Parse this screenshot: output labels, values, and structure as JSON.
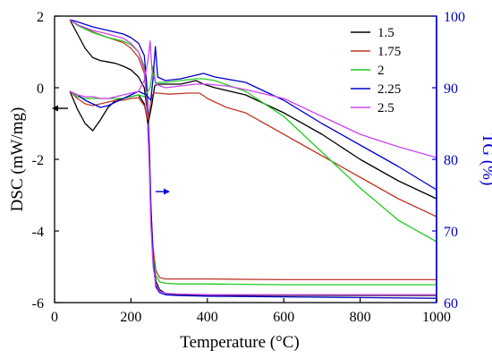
{
  "chart_data": {
    "type": "line",
    "xlabel": "Temperature (°C)",
    "ylabel": "DSC (mW/mg)",
    "y2label": "TG (%)",
    "xlim": [
      0,
      1000
    ],
    "ylim": [
      -6,
      2
    ],
    "y2lim": [
      60,
      100
    ],
    "xticks": [
      "0",
      "200",
      "400",
      "600",
      "800",
      "1000"
    ],
    "yticks": [
      "2",
      "0",
      "-2",
      "-4",
      "-6"
    ],
    "y2ticks": [
      "100",
      "90",
      "80",
      "70",
      "60"
    ],
    "legend_position": "top-right",
    "legend": [
      "1.5",
      "1.75",
      "2",
      "2.25",
      "2.5"
    ],
    "colors": {
      "1.5": "#000000",
      "1.75": "#c0392b",
      "2": "#22cc22",
      "2.25": "#0000cc",
      "2.5": "#cc44ee",
      "right_axis": "#0000cc",
      "left_arrow": "#000000"
    },
    "annotations": [
      {
        "type": "arrow",
        "direction": "left",
        "meaning": "DSC axis"
      },
      {
        "type": "arrow",
        "direction": "right",
        "meaning": "TG axis"
      }
    ],
    "dsc_series": [
      {
        "name": "1.5",
        "color": "#000000",
        "x": [
          40,
          60,
          80,
          100,
          120,
          140,
          160,
          180,
          200,
          220,
          235,
          245,
          255,
          262,
          270,
          290,
          330,
          370,
          390,
          420,
          500,
          600,
          700,
          800,
          900,
          1000
        ],
        "y": [
          -0.1,
          -0.6,
          -1.0,
          -1.2,
          -0.9,
          -0.55,
          -0.35,
          -0.3,
          -0.25,
          -0.2,
          -0.45,
          -1.0,
          -0.45,
          0.05,
          0.1,
          0.1,
          0.1,
          0.2,
          0.1,
          0.0,
          -0.2,
          -0.7,
          -1.3,
          -2.0,
          -2.6,
          -3.1
        ]
      },
      {
        "name": "1.75",
        "color": "#c0392b",
        "x": [
          40,
          60,
          80,
          100,
          120,
          140,
          160,
          180,
          200,
          220,
          235,
          245,
          255,
          262,
          270,
          300,
          350,
          380,
          400,
          450,
          500,
          600,
          700,
          800,
          900,
          1000
        ],
        "y": [
          -0.1,
          -0.3,
          -0.45,
          -0.5,
          -0.45,
          -0.4,
          -0.35,
          -0.35,
          -0.3,
          -0.28,
          -0.5,
          -0.9,
          -0.2,
          -0.15,
          -0.15,
          -0.18,
          -0.15,
          -0.15,
          -0.3,
          -0.55,
          -0.7,
          -1.3,
          -1.9,
          -2.5,
          -3.1,
          -3.6
        ]
      },
      {
        "name": "2",
        "color": "#22cc22",
        "x": [
          40,
          60,
          80,
          100,
          120,
          140,
          160,
          180,
          200,
          220,
          235,
          250,
          258,
          265,
          270,
          290,
          330,
          370,
          390,
          420,
          500,
          600,
          700,
          800,
          900,
          1000
        ],
        "y": [
          -0.1,
          -0.25,
          -0.3,
          -0.3,
          -0.3,
          -0.3,
          -0.3,
          -0.3,
          -0.25,
          -0.2,
          -0.25,
          0.0,
          0.6,
          0.1,
          0.15,
          0.15,
          0.2,
          0.25,
          0.25,
          0.2,
          -0.1,
          -0.8,
          -1.8,
          -2.8,
          -3.7,
          -4.3
        ]
      },
      {
        "name": "2.25",
        "color": "#0000cc",
        "x": [
          40,
          60,
          80,
          100,
          120,
          140,
          160,
          180,
          200,
          220,
          240,
          252,
          258,
          264,
          270,
          290,
          330,
          370,
          390,
          420,
          500,
          600,
          700,
          800,
          900,
          1000
        ],
        "y": [
          -0.1,
          -0.2,
          -0.35,
          -0.45,
          -0.55,
          -0.5,
          -0.4,
          -0.3,
          -0.2,
          -0.1,
          -0.2,
          -0.35,
          0.3,
          1.15,
          0.3,
          0.2,
          0.25,
          0.35,
          0.4,
          0.3,
          0.15,
          -0.35,
          -1.0,
          -1.6,
          -2.2,
          -2.85
        ]
      },
      {
        "name": "2.5",
        "color": "#cc44ee",
        "x": [
          40,
          60,
          80,
          100,
          120,
          140,
          160,
          180,
          200,
          220,
          235,
          245,
          250,
          255,
          265,
          290,
          330,
          370,
          400,
          450,
          500,
          600,
          700,
          800,
          900,
          1000
        ],
        "y": [
          -0.1,
          -0.2,
          -0.25,
          -0.25,
          -0.3,
          -0.3,
          -0.25,
          -0.2,
          -0.15,
          -0.1,
          0.2,
          0.8,
          1.3,
          0.5,
          0.1,
          0.0,
          0.05,
          0.1,
          0.1,
          0.05,
          -0.05,
          -0.3,
          -0.8,
          -1.3,
          -1.65,
          -1.95
        ]
      }
    ],
    "tg_series": [
      {
        "name": "1.5",
        "color": "#000000",
        "x": [
          40,
          60,
          80,
          100,
          120,
          140,
          160,
          180,
          200,
          220,
          235,
          242,
          248,
          252,
          258,
          265,
          275,
          290,
          320,
          400,
          600,
          800,
          1000
        ],
        "y": [
          99.5,
          97.5,
          95.5,
          94.2,
          93.8,
          93.6,
          93.4,
          93.0,
          92.5,
          91.5,
          90.0,
          87.0,
          80.0,
          72.0,
          66.0,
          63.0,
          61.8,
          61.3,
          61.1,
          61.0,
          61.0,
          61.0,
          61.0
        ]
      },
      {
        "name": "1.75",
        "color": "#c0392b",
        "x": [
          40,
          60,
          100,
          140,
          180,
          200,
          220,
          235,
          242,
          248,
          252,
          258,
          265,
          275,
          290,
          320,
          400,
          600,
          800,
          1000
        ],
        "y": [
          99.5,
          98.8,
          97.8,
          97.0,
          96.3,
          95.5,
          94.2,
          92.0,
          88.0,
          80.0,
          73.0,
          67.5,
          64.5,
          63.5,
          63.3,
          63.3,
          63.3,
          63.2,
          63.2,
          63.2
        ]
      },
      {
        "name": "2",
        "color": "#22cc22",
        "x": [
          40,
          60,
          100,
          140,
          180,
          200,
          220,
          235,
          242,
          248,
          252,
          258,
          265,
          275,
          290,
          320,
          400,
          600,
          800,
          1000
        ],
        "y": [
          99.5,
          98.7,
          97.7,
          97.0,
          96.5,
          96.0,
          95.0,
          93.0,
          89.0,
          80.0,
          73.0,
          66.5,
          63.8,
          62.9,
          62.7,
          62.6,
          62.6,
          62.5,
          62.5,
          62.5
        ]
      },
      {
        "name": "2.25",
        "color": "#0000cc",
        "x": [
          40,
          60,
          100,
          140,
          180,
          200,
          220,
          235,
          242,
          248,
          252,
          258,
          265,
          275,
          290,
          320,
          400,
          600,
          800,
          1000
        ],
        "y": [
          99.5,
          99.2,
          98.5,
          98.0,
          97.5,
          97.0,
          96.2,
          94.5,
          90.0,
          82.0,
          74.0,
          66.0,
          62.2,
          61.4,
          61.1,
          61.0,
          60.9,
          60.8,
          60.7,
          60.6
        ]
      },
      {
        "name": "2.5",
        "color": "#cc44ee",
        "x": [
          40,
          60,
          100,
          140,
          180,
          200,
          220,
          235,
          242,
          248,
          252,
          258,
          265,
          275,
          290,
          320,
          400,
          600,
          800,
          1000
        ],
        "y": [
          99.5,
          98.8,
          98.0,
          97.5,
          96.9,
          96.2,
          95.0,
          92.5,
          88.0,
          79.0,
          71.0,
          65.0,
          62.5,
          61.6,
          61.3,
          61.2,
          61.1,
          61.1,
          61.1,
          61.1
        ]
      }
    ]
  }
}
